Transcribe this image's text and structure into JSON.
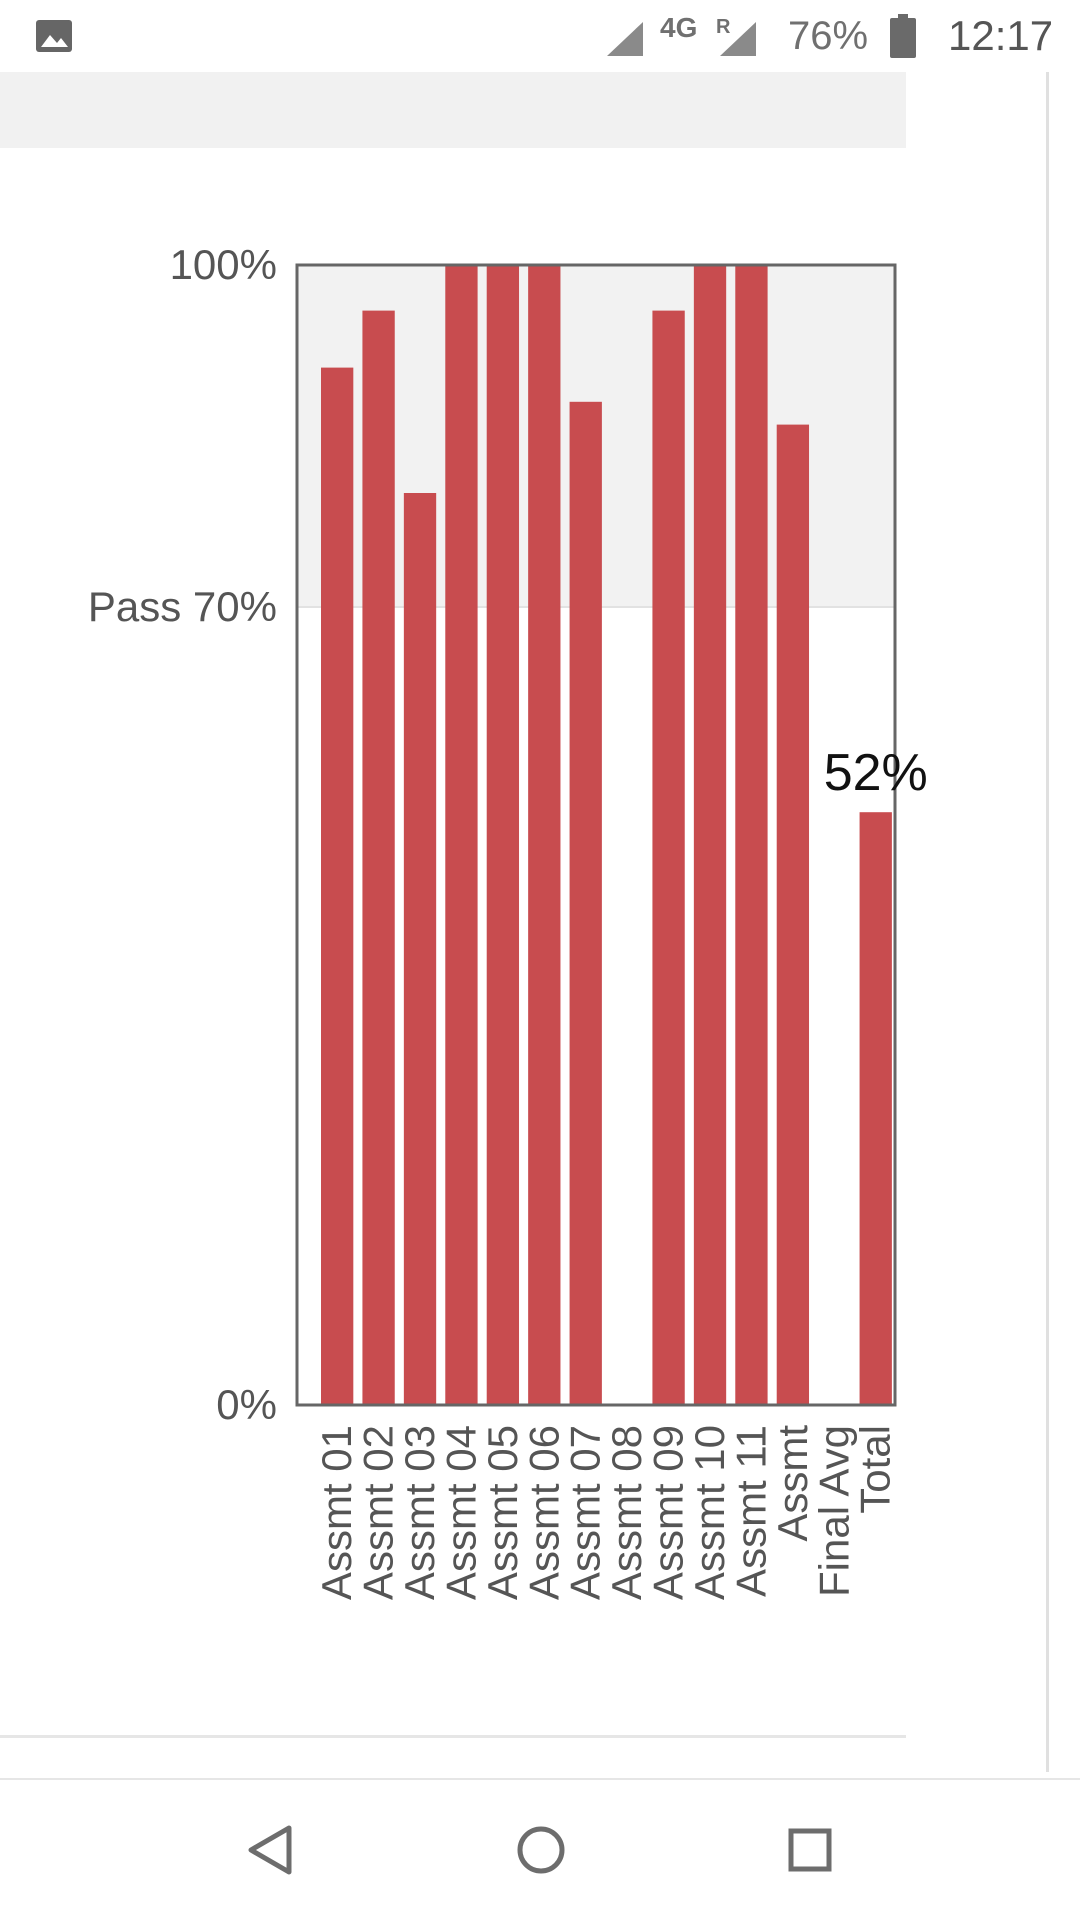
{
  "status_bar": {
    "network": "4G",
    "roaming": "R",
    "battery": "76%",
    "time": "12:17",
    "icons": [
      "image-icon",
      "signal-icon",
      "signal-icon",
      "battery-icon"
    ]
  },
  "chart_data": {
    "type": "bar",
    "categories": [
      "Assmt 01",
      "Assmt 02",
      "Assmt 03",
      "Assmt 04",
      "Assmt 05",
      "Assmt 06",
      "Assmt 07",
      "Assmt 08",
      "Assmt 09",
      "Assmt 10",
      "Assmt 11",
      "Assmt",
      "Final Avg",
      "Total"
    ],
    "values": [
      91,
      96,
      80,
      100,
      100,
      100,
      88,
      null,
      96,
      100,
      100,
      86,
      null,
      52
    ],
    "ylim": [
      0,
      100
    ],
    "y_ticks": [
      {
        "value": 0,
        "label": "0%"
      },
      {
        "value": 70,
        "label": "Pass 70%"
      },
      {
        "value": 100,
        "label": "100%"
      }
    ],
    "pass_threshold": 70,
    "data_labels": [
      {
        "category": "Total",
        "text": "52%"
      }
    ],
    "bar_color": "#c84c4f",
    "pass_band_color": "#f2f2f2",
    "grid": false,
    "legend": "none"
  },
  "nav_bar": {
    "icons": [
      "back-icon",
      "home-icon",
      "recent-apps-icon"
    ]
  }
}
